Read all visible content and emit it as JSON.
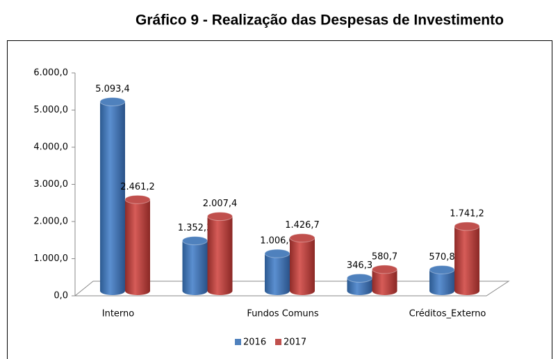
{
  "chart_data": {
    "type": "bar3d",
    "title": "Gráfico 9 - Realização das Despesas de Investimento",
    "categories": [
      "Interno",
      null,
      "Fundos Comuns",
      null,
      "Créditos_Externo"
    ],
    "series": [
      {
        "name": "2016",
        "color": "#4f81bd",
        "values": [
          5093.4,
          1352.3,
          1006.0,
          346.3,
          570.8
        ],
        "value_labels": [
          "5.093,4",
          "1.352,3",
          "1.006,0",
          "346,3",
          "570,8"
        ]
      },
      {
        "name": "2017",
        "color": "#c0504d",
        "values": [
          2461.2,
          2007.4,
          1426.7,
          580.7,
          1741.2
        ],
        "value_labels": [
          "2.461,2",
          "2.007,4",
          "1.426,7",
          "580,7",
          "1.741,2"
        ]
      }
    ],
    "ylim": [
      0,
      6000
    ],
    "yticks": [
      {
        "value": 0,
        "label": "0,0"
      },
      {
        "value": 1000,
        "label": "1.000,0"
      },
      {
        "value": 2000,
        "label": "2.000,0"
      },
      {
        "value": 3000,
        "label": "3.000,0"
      },
      {
        "value": 4000,
        "label": "4.000,0"
      },
      {
        "value": 5000,
        "label": "5.000,0"
      },
      {
        "value": 6000,
        "label": "6.000,0"
      }
    ],
    "legend": "bottom"
  }
}
